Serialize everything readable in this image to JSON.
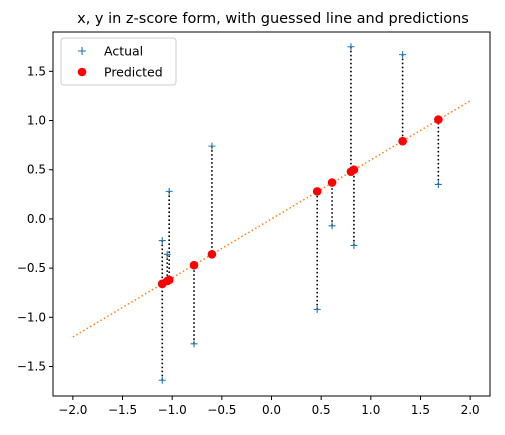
{
  "chart_data": {
    "type": "scatter",
    "title": "x, y in z-score form, with guessed line and predictions",
    "xlabel": "",
    "ylabel": "",
    "xlim": [
      -2.2,
      2.2
    ],
    "ylim": [
      -1.8,
      1.9
    ],
    "xticks": [
      -2.0,
      -1.5,
      -1.0,
      -0.5,
      0.0,
      0.5,
      1.0,
      1.5,
      2.0
    ],
    "xtick_labels": [
      "−2.0",
      "−1.5",
      "−1.0",
      "−0.5",
      "0.0",
      "0.5",
      "1.0",
      "1.5",
      "2.0"
    ],
    "yticks": [
      -1.5,
      -1.0,
      -0.5,
      0.0,
      0.5,
      1.0,
      1.5
    ],
    "ytick_labels": [
      "−1.5",
      "−1.0",
      "−0.5",
      "0.0",
      "0.5",
      "1.0",
      "1.5"
    ],
    "grid": false,
    "legend_position": "top-left",
    "guessed_line": {
      "slope": 0.6,
      "intercept": 0.0,
      "x_range": [
        -2.0,
        2.0
      ],
      "color": "#ff7f0e",
      "style": "dotted"
    },
    "series": [
      {
        "name": "Actual",
        "marker": "plus",
        "color": "#1f77b4",
        "points": [
          {
            "x": -1.1,
            "y": -0.22
          },
          {
            "x": -1.1,
            "y": -1.64
          },
          {
            "x": -1.05,
            "y": -0.36
          },
          {
            "x": -1.03,
            "y": 0.28
          },
          {
            "x": -0.78,
            "y": -1.27
          },
          {
            "x": -0.6,
            "y": 0.74
          },
          {
            "x": 0.46,
            "y": -0.92
          },
          {
            "x": 0.61,
            "y": -0.07
          },
          {
            "x": 0.8,
            "y": 1.75
          },
          {
            "x": 0.83,
            "y": -0.27
          },
          {
            "x": 1.32,
            "y": 1.67
          },
          {
            "x": 1.68,
            "y": 0.35
          }
        ]
      },
      {
        "name": "Predicted",
        "marker": "circle",
        "color": "#ff0000",
        "points": [
          {
            "x": -1.1,
            "y": -0.66
          },
          {
            "x": -1.1,
            "y": -0.66
          },
          {
            "x": -1.05,
            "y": -0.63
          },
          {
            "x": -1.03,
            "y": -0.62
          },
          {
            "x": -0.78,
            "y": -0.47
          },
          {
            "x": -0.6,
            "y": -0.36
          },
          {
            "x": 0.46,
            "y": 0.28
          },
          {
            "x": 0.61,
            "y": 0.37
          },
          {
            "x": 0.8,
            "y": 0.48
          },
          {
            "x": 0.83,
            "y": 0.5
          },
          {
            "x": 1.32,
            "y": 0.79
          },
          {
            "x": 1.68,
            "y": 1.01
          }
        ]
      }
    ]
  }
}
